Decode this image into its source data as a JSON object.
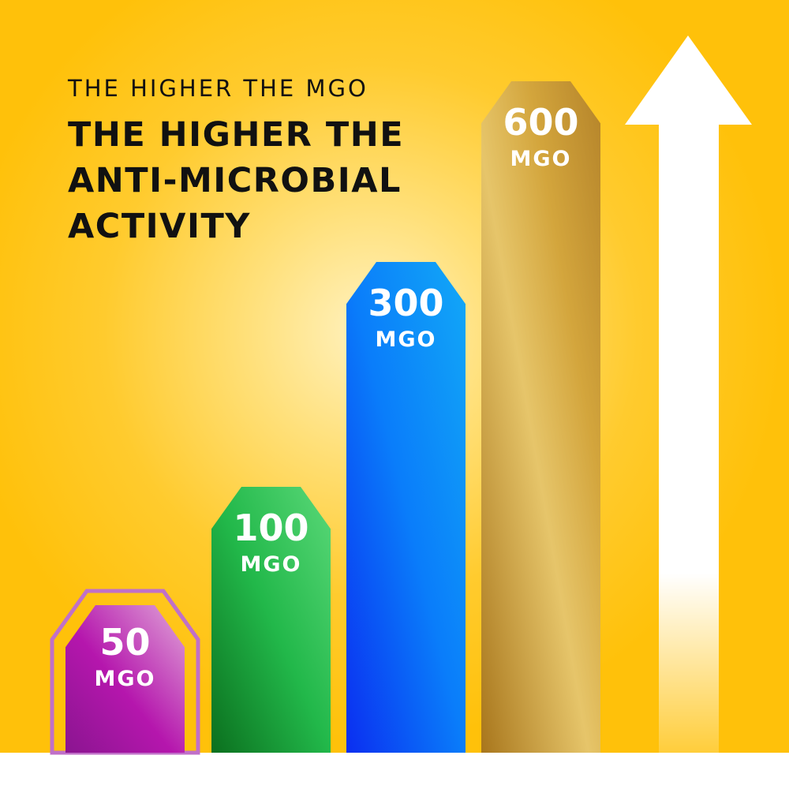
{
  "headline": {
    "subtitle": "THE HIGHER THE MGO",
    "title": "THE HIGHER THE ANTI-MICROBIAL ACTIVITY"
  },
  "chart_data": {
    "type": "bar",
    "title": "THE HIGHER THE ANTI-MICROBIAL ACTIVITY",
    "subtitle": "THE HIGHER THE MGO",
    "categories": [
      "50 MGO",
      "100 MGO",
      "300 MGO",
      "600 MGO"
    ],
    "values": [
      50,
      100,
      300,
      600
    ],
    "unit": "MGO",
    "value_labels": [
      "50",
      "100",
      "300",
      "600"
    ],
    "colors": [
      "#b018a8",
      "#1fb84a",
      "#0a5cff",
      "#c9982e"
    ],
    "grid": false,
    "legend": "none",
    "decoration": "white upward arrow",
    "background_color": "#ffc10a"
  }
}
